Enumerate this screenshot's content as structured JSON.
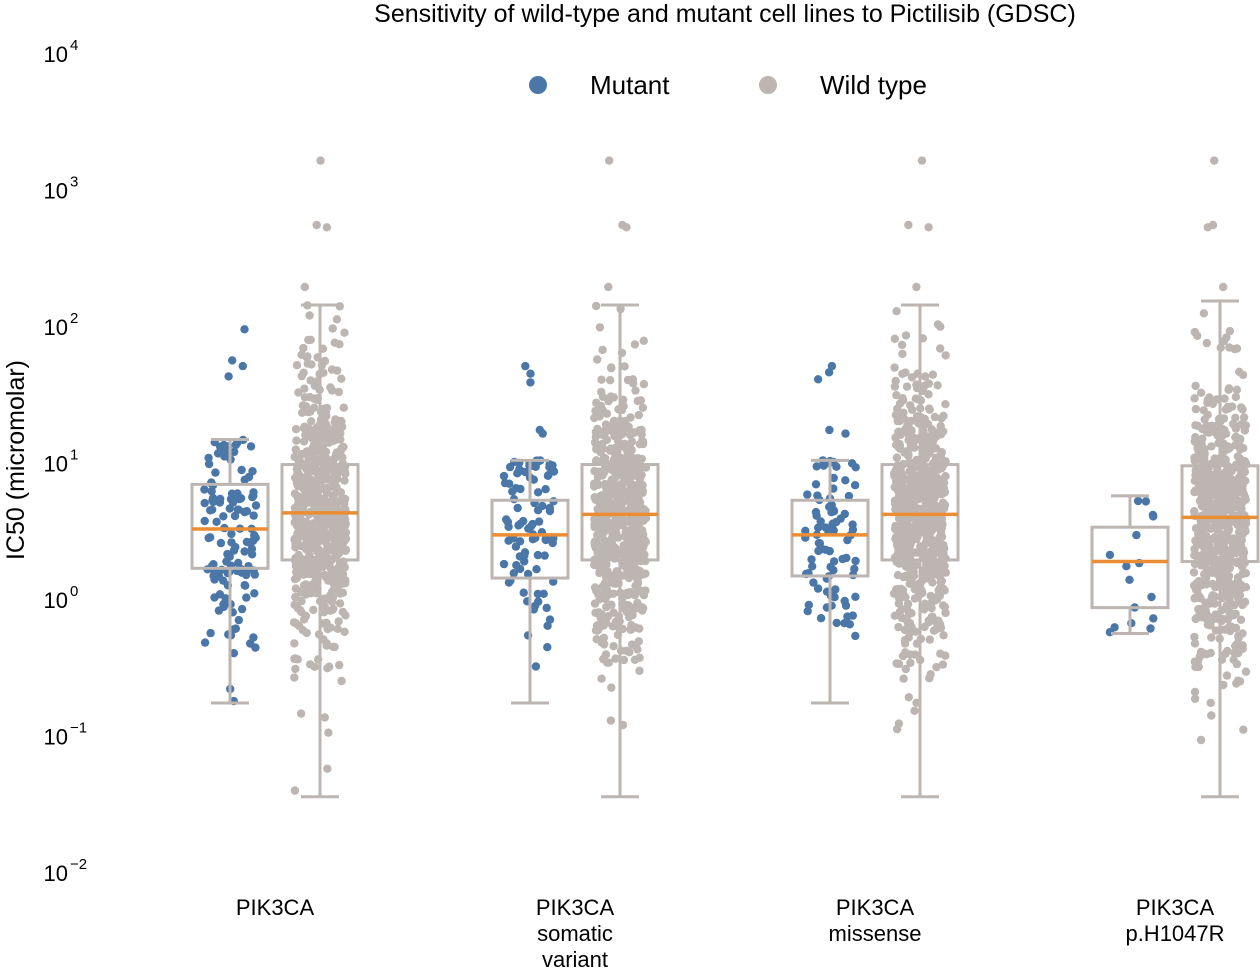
{
  "chart_data": {
    "type": "boxplot-strip",
    "title": "Sensitivity of wild-type and mutant cell lines to Pictilisib (GDSC)",
    "ylabel": "IC50 (micromolar)",
    "yscale": "log10",
    "ylim": [
      0.01,
      10000
    ],
    "yticks": [
      {
        "exp": "4",
        "value": 10000
      },
      {
        "exp": "3",
        "value": 1000
      },
      {
        "exp": "2",
        "value": 100
      },
      {
        "exp": "1",
        "value": 10
      },
      {
        "exp": "0",
        "value": 1
      },
      {
        "exp": "−1",
        "value": 0.1
      },
      {
        "exp": "−2",
        "value": 0.01
      }
    ],
    "legend": {
      "placement": "top-center",
      "items": [
        {
          "label": "Mutant",
          "color": "#4a77a8"
        },
        {
          "label": "Wild type",
          "color": "#bcb5b1"
        }
      ]
    },
    "colors": {
      "mutant": "#4a77a8",
      "wildtype": "#bcb5b1",
      "box": "#bcb5b1",
      "median": "#ea8d35"
    },
    "groups": [
      {
        "label_lines": [
          "PIK3CA"
        ],
        "mutant": {
          "n": 130,
          "median": 3.2,
          "q1": 1.65,
          "q3": 6.8,
          "whisker_low": 0.17,
          "whisker_high": 14.5,
          "fliers": [
            42,
            50,
            55,
            93
          ]
        },
        "wildtype": {
          "n": 620,
          "median": 4.2,
          "q1": 1.9,
          "q3": 9.5,
          "whisker_low": 0.035,
          "whisker_high": 140,
          "fliers": [
            190,
            520,
            540,
            1600
          ]
        }
      },
      {
        "label_lines": [
          "PIK3CA",
          "somatic",
          "variant"
        ],
        "mutant": {
          "n": 95,
          "median": 2.9,
          "q1": 1.4,
          "q3": 5.2,
          "whisker_low": 0.17,
          "whisker_high": 10.2,
          "fliers": [
            16,
            17,
            38,
            44,
            50
          ]
        },
        "wildtype": {
          "n": 620,
          "median": 4.1,
          "q1": 1.9,
          "q3": 9.5,
          "whisker_low": 0.035,
          "whisker_high": 140,
          "fliers": [
            190,
            520,
            540,
            1600
          ]
        }
      },
      {
        "label_lines": [
          "PIK3CA",
          "missense"
        ],
        "mutant": {
          "n": 90,
          "median": 2.9,
          "q1": 1.45,
          "q3": 5.2,
          "whisker_low": 0.17,
          "whisker_high": 10.2,
          "fliers": [
            16,
            17,
            40,
            45,
            50
          ]
        },
        "wildtype": {
          "n": 620,
          "median": 4.1,
          "q1": 1.9,
          "q3": 9.5,
          "whisker_low": 0.035,
          "whisker_high": 140,
          "fliers": [
            190,
            520,
            540,
            1600
          ]
        }
      },
      {
        "label_lines": [
          "PIK3CA",
          "p.H1047R"
        ],
        "mutant": {
          "n": 16,
          "median": 1.85,
          "q1": 0.85,
          "q3": 3.3,
          "whisker_low": 0.55,
          "whisker_high": 5.6,
          "fliers": []
        },
        "wildtype": {
          "n": 620,
          "median": 3.9,
          "q1": 1.85,
          "q3": 9.3,
          "whisker_low": 0.035,
          "whisker_high": 150,
          "fliers": [
            190,
            520,
            540,
            1600
          ]
        }
      }
    ]
  }
}
